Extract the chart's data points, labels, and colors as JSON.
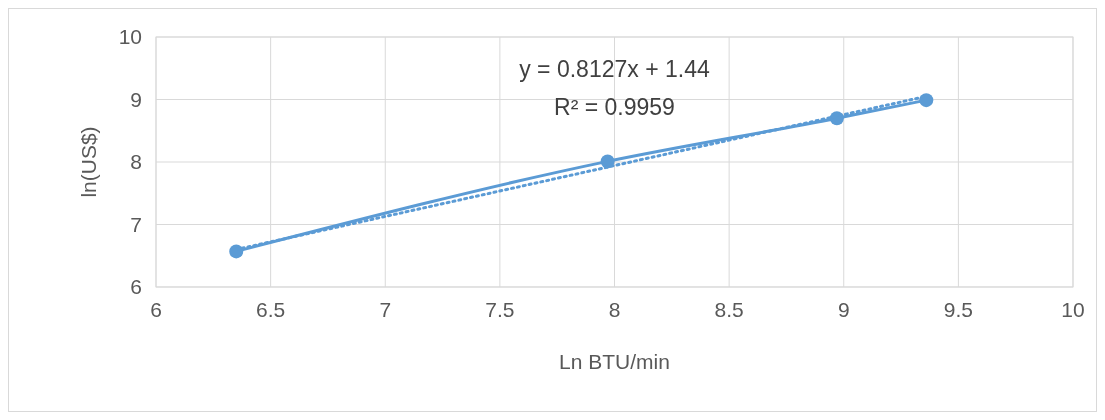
{
  "chart_data": {
    "type": "line",
    "xlabel": "Ln BTU/min",
    "ylabel": "ln(US$)",
    "xlim": [
      6,
      10
    ],
    "ylim": [
      6,
      10
    ],
    "xticks": [
      6,
      6.5,
      7,
      7.5,
      8,
      8.5,
      9,
      9.5,
      10
    ],
    "yticks": [
      6,
      7,
      8,
      9,
      10
    ],
    "grid": true,
    "annotations": [
      "y = 0.8127x + 1.44",
      "R² = 0.9959"
    ],
    "series": [
      {
        "color": "#5b9bd5",
        "x": [
          6.35,
          7.97,
          8.97,
          9.36
        ],
        "values": [
          6.57,
          8.01,
          8.7,
          8.99
        ],
        "marker": "circle",
        "line_style": "solid"
      },
      {
        "type": "line",
        "color": "#5b9bd5",
        "x": [
          6.35,
          9.36
        ],
        "values": [
          6.6,
          9.05
        ],
        "marker": "none",
        "line_style": "dotted"
      }
    ]
  }
}
